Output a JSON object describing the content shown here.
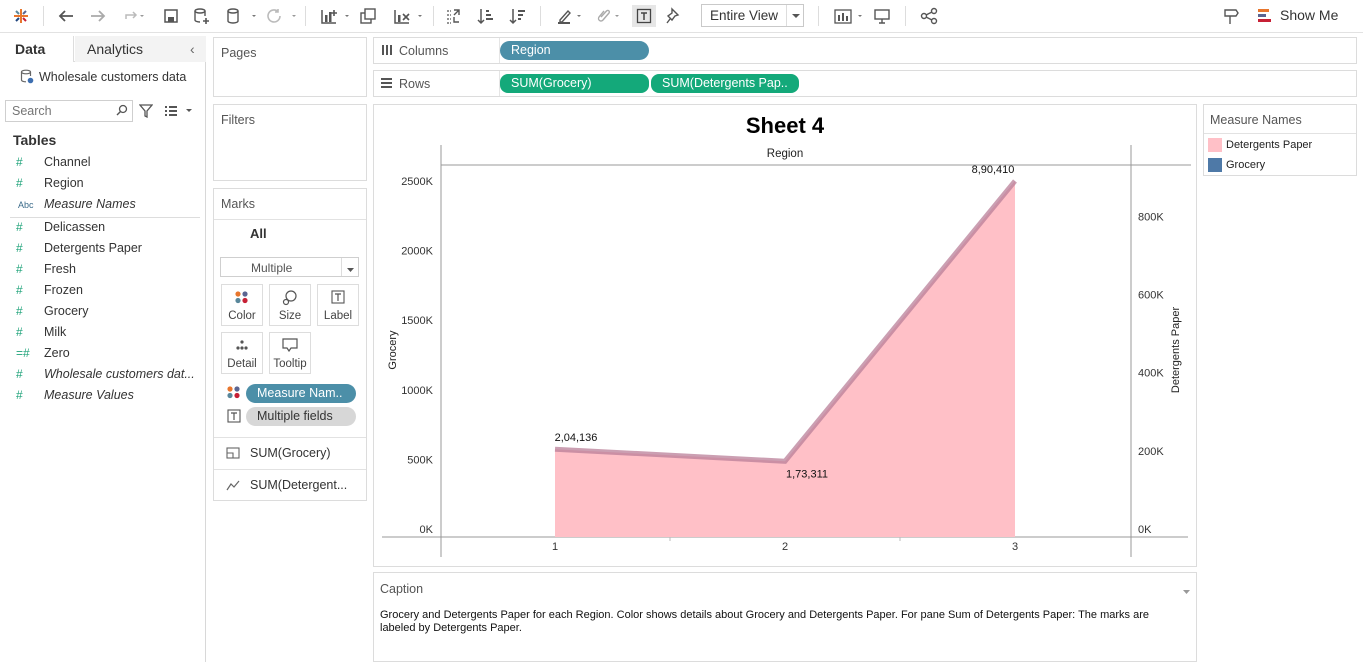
{
  "toolbar": {
    "entire_view": "Entire View",
    "show_me": "Show Me"
  },
  "left_pane": {
    "tab_data": "Data",
    "tab_analytics": "Analytics",
    "datasource": "Wholesale customers data",
    "search_placeholder": "Search",
    "tables_header": "Tables",
    "dimensions": [
      {
        "icon": "#",
        "label": "Channel",
        "italic": false
      },
      {
        "icon": "#",
        "label": "Region",
        "italic": false
      },
      {
        "icon": "Abc",
        "label": "Measure Names",
        "italic": true
      }
    ],
    "measures": [
      {
        "icon": "#",
        "label": "Delicassen",
        "italic": false
      },
      {
        "icon": "#",
        "label": "Detergents Paper",
        "italic": false
      },
      {
        "icon": "#",
        "label": "Fresh",
        "italic": false
      },
      {
        "icon": "#",
        "label": "Frozen",
        "italic": false
      },
      {
        "icon": "#",
        "label": "Grocery",
        "italic": false
      },
      {
        "icon": "#",
        "label": "Milk",
        "italic": false
      },
      {
        "icon": "=#",
        "label": "Zero",
        "italic": false
      },
      {
        "icon": "#",
        "label": "Wholesale customers dat...",
        "italic": true
      },
      {
        "icon": "#",
        "label": "Measure Values",
        "italic": true
      }
    ]
  },
  "pages": {
    "title": "Pages"
  },
  "filters": {
    "title": "Filters"
  },
  "marks": {
    "title": "Marks",
    "all_label": "All",
    "mark_type": "Multiple",
    "buttons": {
      "color": "Color",
      "size": "Size",
      "label": "Label",
      "detail": "Detail",
      "tooltip": "Tooltip"
    },
    "pill_measure_names": "Measure Nam..",
    "pill_multiple_fields": "Multiple fields",
    "card_grocery": "SUM(Grocery)",
    "card_detergents": "SUM(Detergent..."
  },
  "shelves": {
    "columns_label": "Columns",
    "rows_label": "Rows",
    "columns_pill": "Region",
    "rows_pill_1": "SUM(Grocery)",
    "rows_pill_2": "SUM(Detergents Pap.."
  },
  "legend": {
    "title": "Measure Names",
    "items": [
      {
        "label": "Detergents Paper",
        "color": "#ffc0c7"
      },
      {
        "label": "Grocery",
        "color": "#4e79a7"
      }
    ]
  },
  "caption": {
    "title": "Caption",
    "text": "Grocery and Detergents Paper for each Region.  Color shows details about Grocery and Detergents Paper.  For pane Sum of Detergents Paper:  The marks are labeled by Detergents Paper."
  },
  "chart_data": {
    "type": "area",
    "title": "Sheet 4",
    "xlabel": "Region",
    "categories": [
      "1",
      "2",
      "3"
    ],
    "y_left_label": "Grocery",
    "y_right_label": "Detergents Paper",
    "y_left_ticks": [
      "0K",
      "500K",
      "1000K",
      "1500K",
      "2000K",
      "2500K"
    ],
    "y_right_ticks": [
      "0K",
      "200K",
      "400K",
      "600K",
      "800K"
    ],
    "ylim_left": [
      0,
      2500000
    ],
    "ylim_right": [
      0,
      890410
    ],
    "series": [
      {
        "name": "Grocery",
        "axis": "left",
        "color": "#4e79a7",
        "values": [
          570000,
          480000,
          2500000
        ]
      },
      {
        "name": "Detergents Paper",
        "axis": "right",
        "color": "#ffc0c7",
        "values": [
          204136,
          173311,
          890410
        ]
      }
    ],
    "data_labels": [
      "2,04,136",
      "1,73,311",
      "8,90,410"
    ]
  }
}
